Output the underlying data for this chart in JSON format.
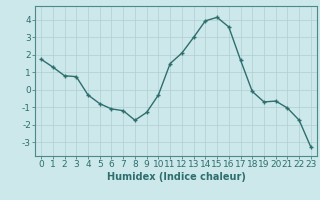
{
  "x": [
    0,
    1,
    2,
    3,
    4,
    5,
    6,
    7,
    8,
    9,
    10,
    11,
    12,
    13,
    14,
    15,
    16,
    17,
    18,
    19,
    20,
    21,
    22,
    23
  ],
  "y": [
    1.75,
    1.3,
    0.8,
    0.75,
    -0.3,
    -0.8,
    -1.1,
    -1.2,
    -1.75,
    -1.3,
    -0.3,
    1.5,
    2.1,
    3.0,
    3.95,
    4.15,
    3.6,
    1.7,
    -0.1,
    -0.7,
    -0.65,
    -1.05,
    -1.75,
    -3.3
  ],
  "line_color": "#2e6e6e",
  "marker": "+",
  "marker_size": 3,
  "linewidth": 1.0,
  "xlabel": "Humidex (Indice chaleur)",
  "xlim": [
    -0.5,
    23.5
  ],
  "ylim": [
    -3.8,
    4.8
  ],
  "yticks": [
    -3,
    -2,
    -1,
    0,
    1,
    2,
    3,
    4
  ],
  "xticks": [
    0,
    1,
    2,
    3,
    4,
    5,
    6,
    7,
    8,
    9,
    10,
    11,
    12,
    13,
    14,
    15,
    16,
    17,
    18,
    19,
    20,
    21,
    22,
    23
  ],
  "bg_color": "#cce8ea",
  "grid_color": "#b0ced2",
  "axes_color": "#4a8a8a",
  "tick_color": "#2e6e6e",
  "xlabel_fontsize": 7,
  "tick_fontsize": 6.5,
  "markeredgewidth": 1.0
}
